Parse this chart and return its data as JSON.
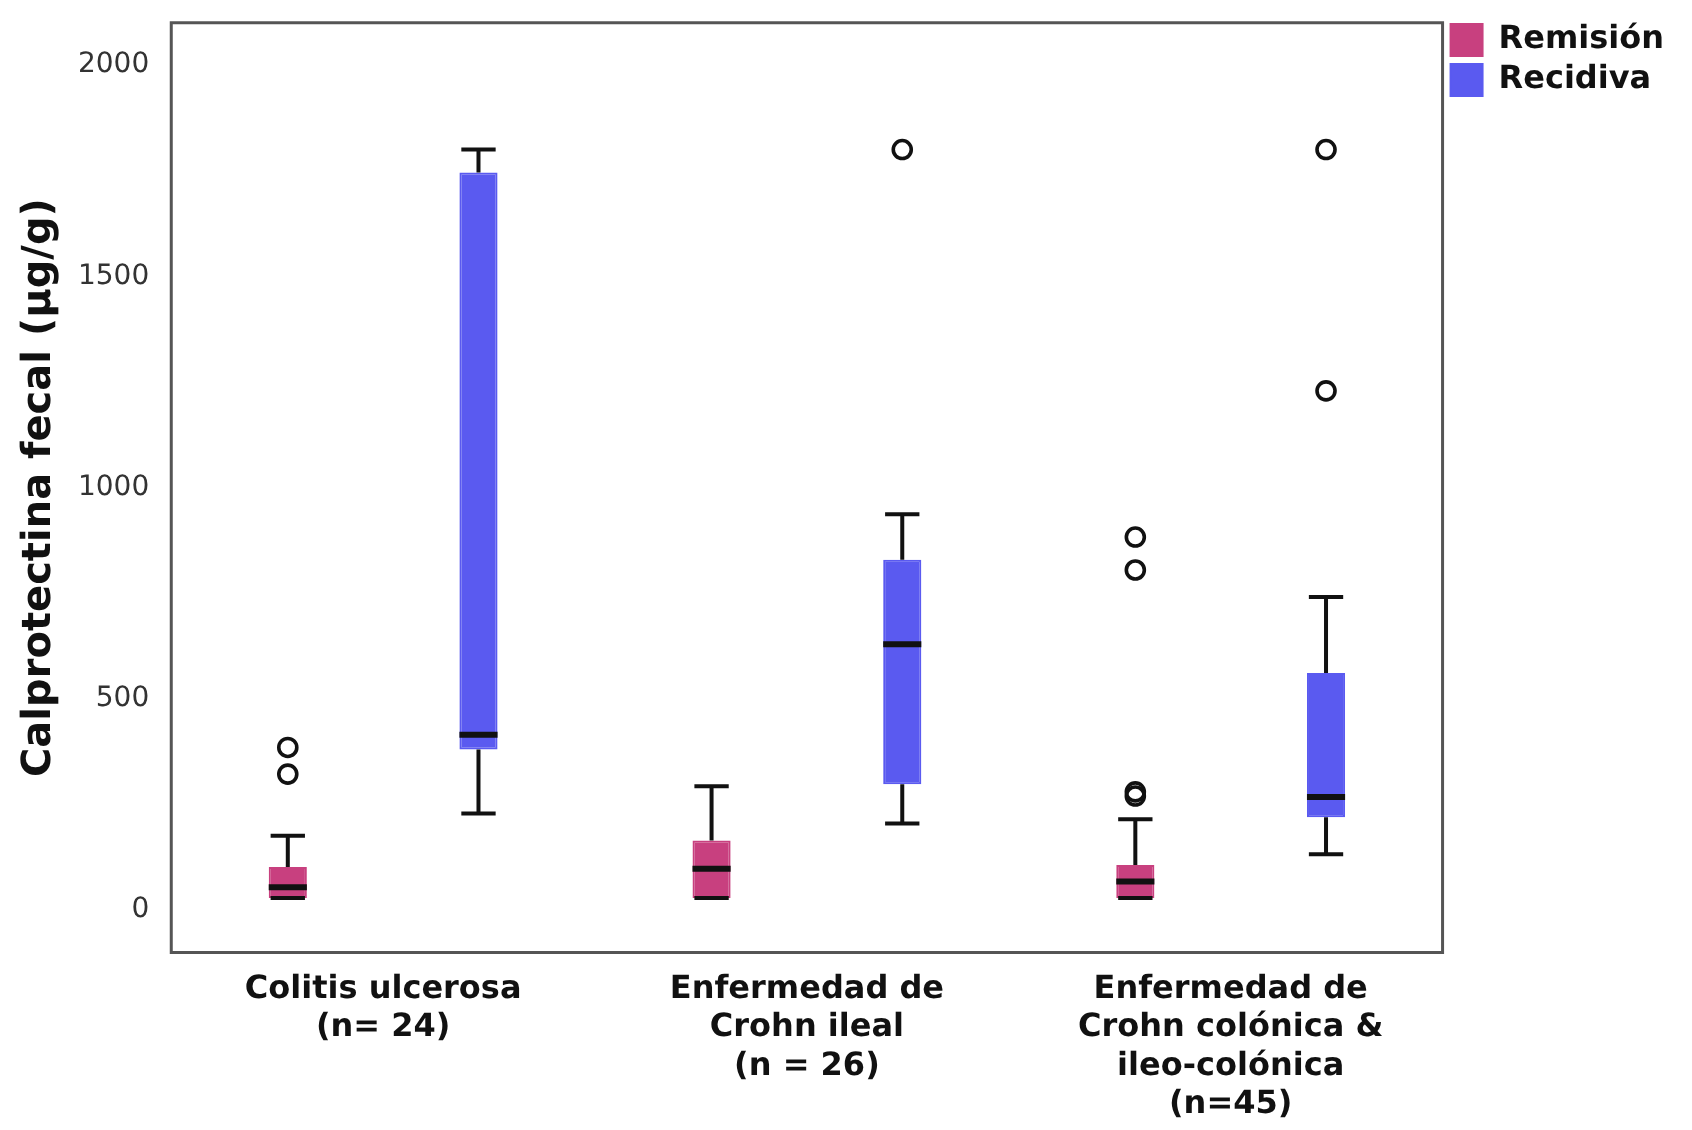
{
  "chart_data": {
    "type": "box",
    "ylabel": "Calprotectina fecal (µg/g)",
    "categories": [
      "Colitis ulcerosa\n(n= 24)",
      "Enfermedad de\nCrohn ileal\n(n = 26)",
      "Enfermedad de\nCrohn colónica &\nileo-colónica\n(n=45)"
    ],
    "series": [
      {
        "name": "Remisión",
        "color": "#c8407f",
        "boxes": [
          {
            "low": 29,
            "q1": 29,
            "median": 54,
            "q3": 102,
            "high": 176,
            "outliers": [
              322,
              385
            ]
          },
          {
            "low": 29,
            "q1": 29,
            "median": 98,
            "q3": 165,
            "high": 293
          },
          {
            "low": 29,
            "q1": 29,
            "median": 68,
            "q3": 107,
            "high": 215,
            "outliers": [
              270,
              280,
              805,
              883
            ]
          }
        ]
      },
      {
        "name": "Recidiva",
        "color": "#5a5af0",
        "boxes": [
          {
            "low": 229,
            "q1": 380,
            "median": 415,
            "q3": 1746,
            "high": 1800
          },
          {
            "low": 205,
            "q1": 298,
            "median": 629,
            "q3": 829,
            "high": 937,
            "outliers": [
              1800
            ]
          },
          {
            "low": 132,
            "q1": 220,
            "median": 268,
            "q3": 561,
            "high": 741,
            "outliers": [
              1229,
              1800
            ]
          }
        ]
      }
    ],
    "ylim": [
      -100,
      2100
    ],
    "yticks": [
      0,
      500,
      1000,
      1500,
      2000
    ],
    "legend": "top right"
  }
}
